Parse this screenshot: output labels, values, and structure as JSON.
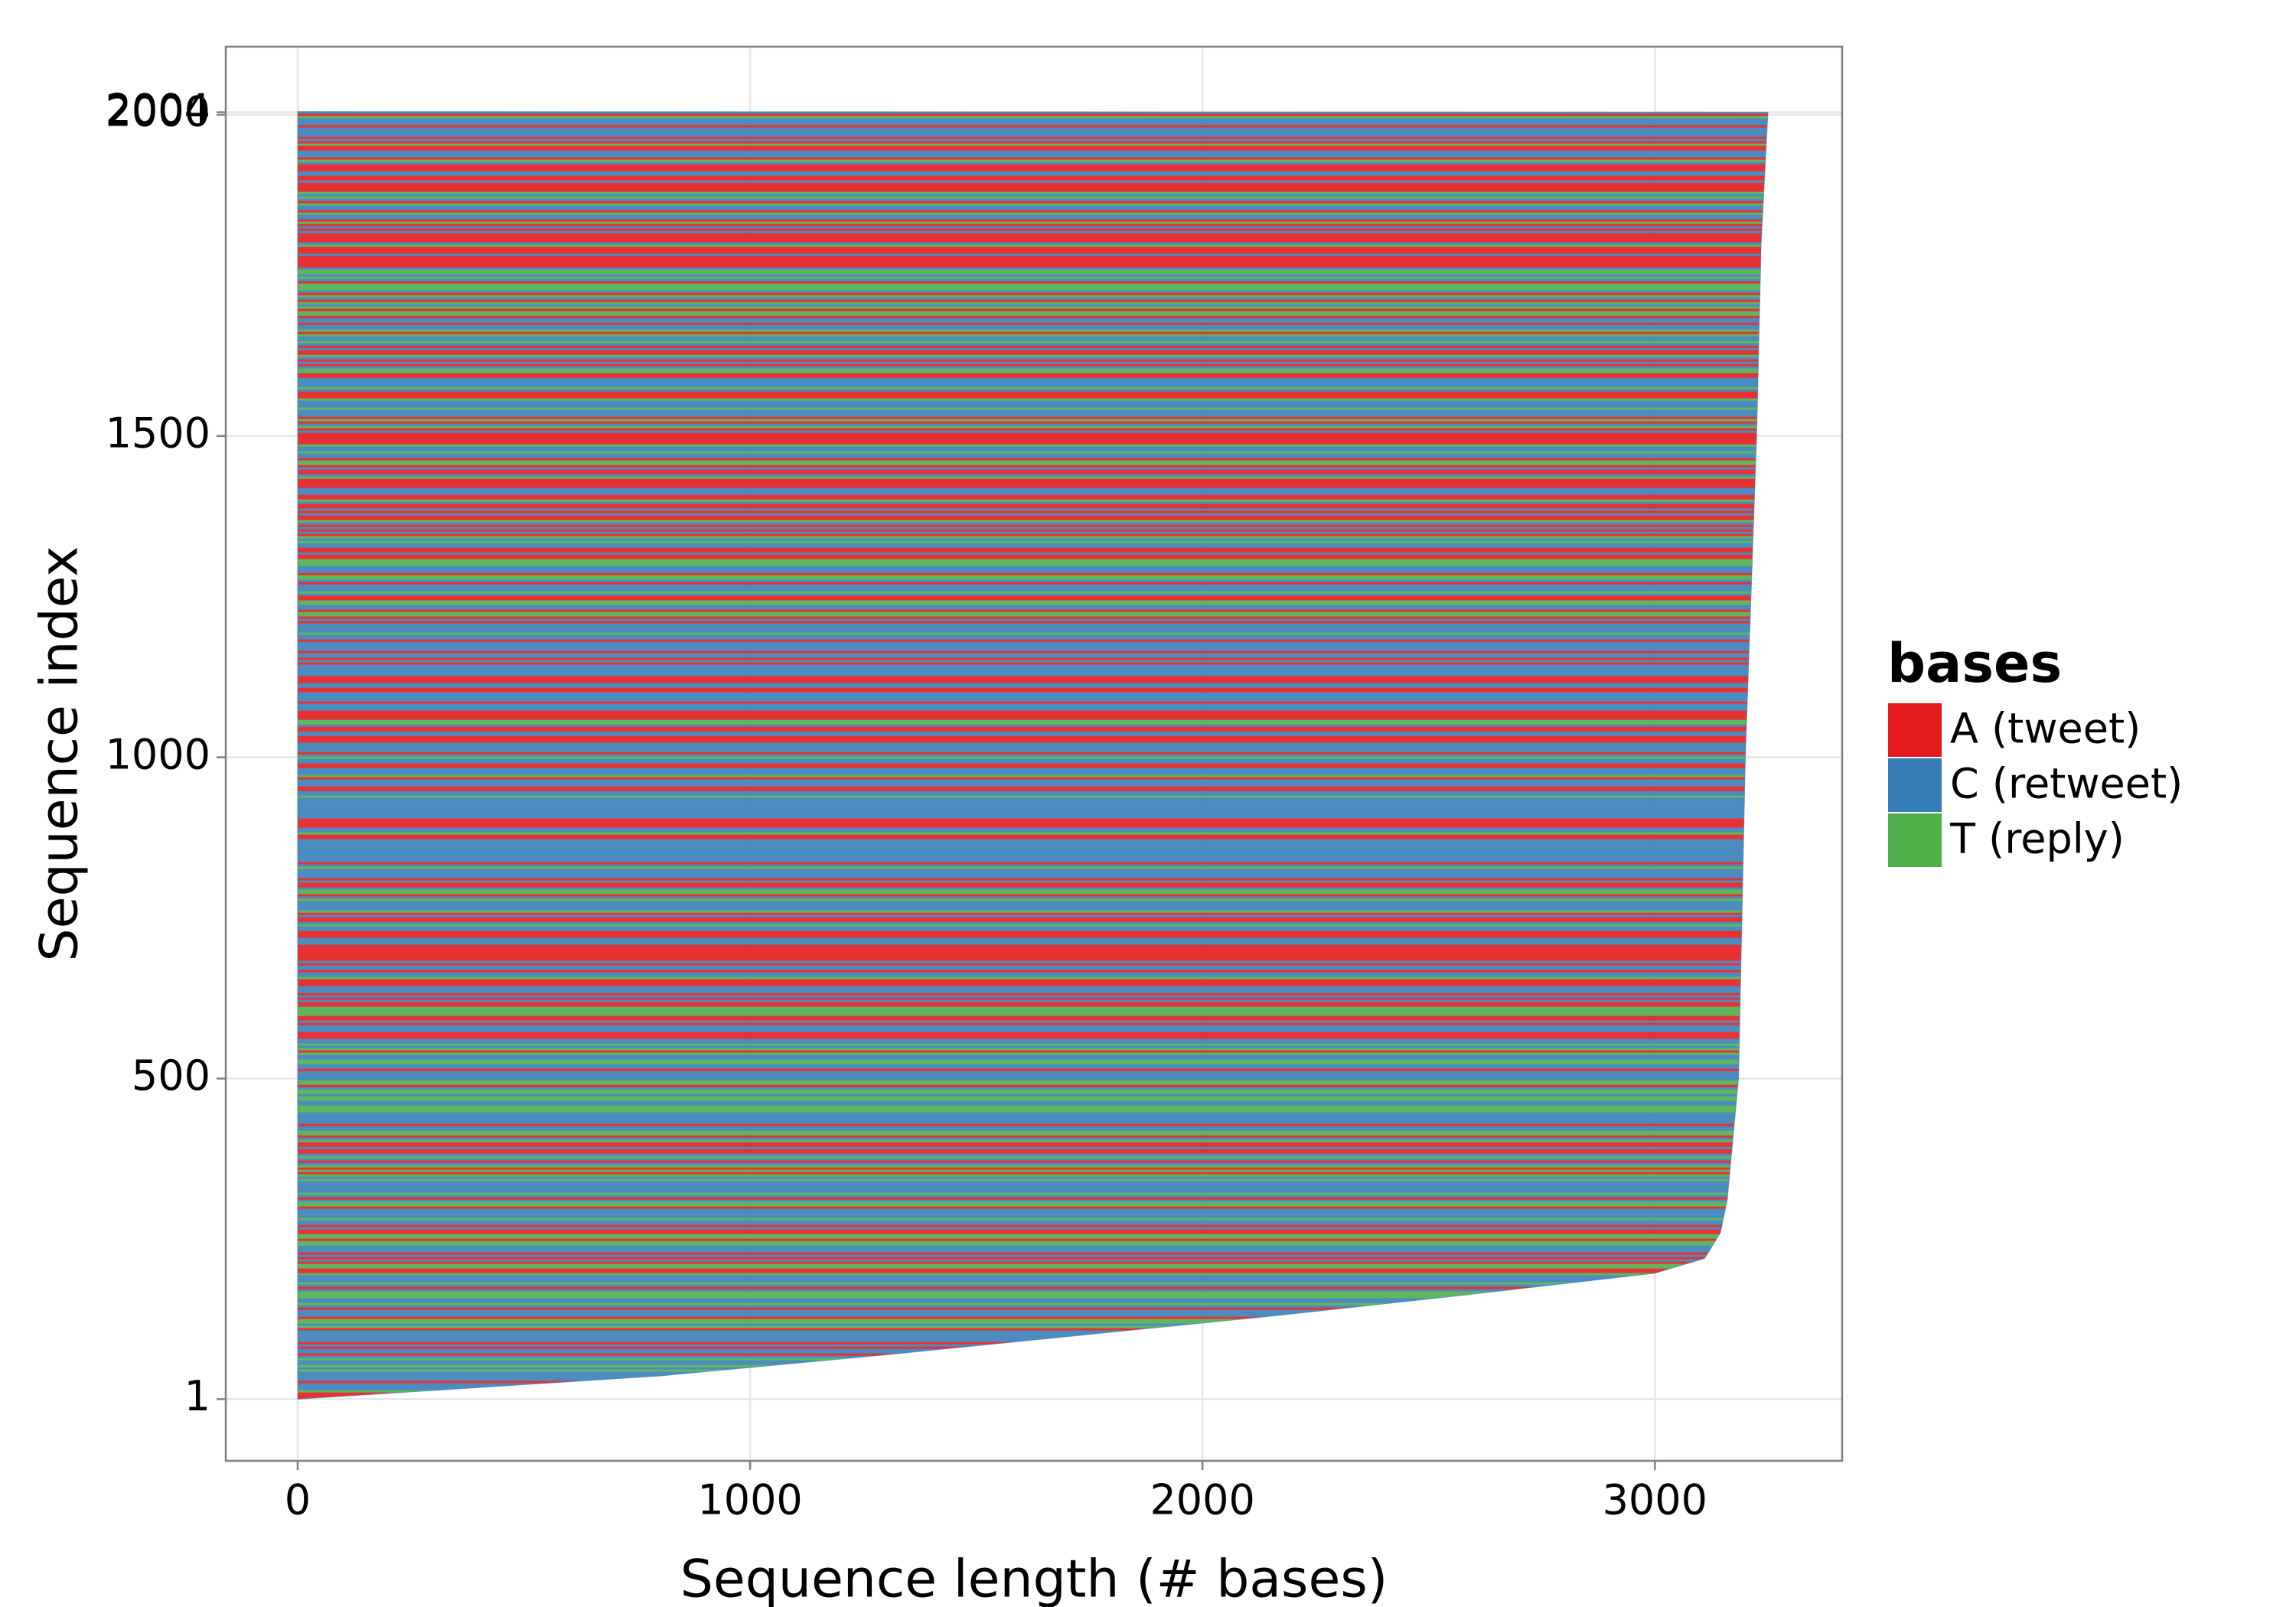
{
  "chart_data": {
    "type": "sequence-index",
    "x_label": "Sequence length (# bases)",
    "y_label": "Sequence index",
    "index": [
      1,
      10,
      37,
      70,
      101,
      130,
      163,
      197,
      220,
      260,
      311,
      500,
      1000,
      1500,
      1800,
      2004
    ],
    "lengths": [
      0,
      200,
      800,
      1300,
      1740,
      2150,
      2580,
      3000,
      3110,
      3145,
      3160,
      3185,
      3200,
      3225,
      3235,
      3250
    ],
    "xlim": [
      -159,
      3414
    ],
    "ylim": [
      -95,
      2106
    ],
    "xticks": [
      0,
      1000,
      2000,
      3000
    ],
    "yticks": [
      1,
      500,
      1000,
      1500,
      2000,
      2004
    ],
    "grid": true,
    "legend": {
      "title": "bases",
      "position": "right",
      "items": [
        {
          "name": "A (tweet)",
          "color": "#e41a1c"
        },
        {
          "name": "C (retweet)",
          "color": "#377eb8"
        },
        {
          "name": "T (reply)",
          "color": "#4daf4a"
        }
      ]
    }
  }
}
